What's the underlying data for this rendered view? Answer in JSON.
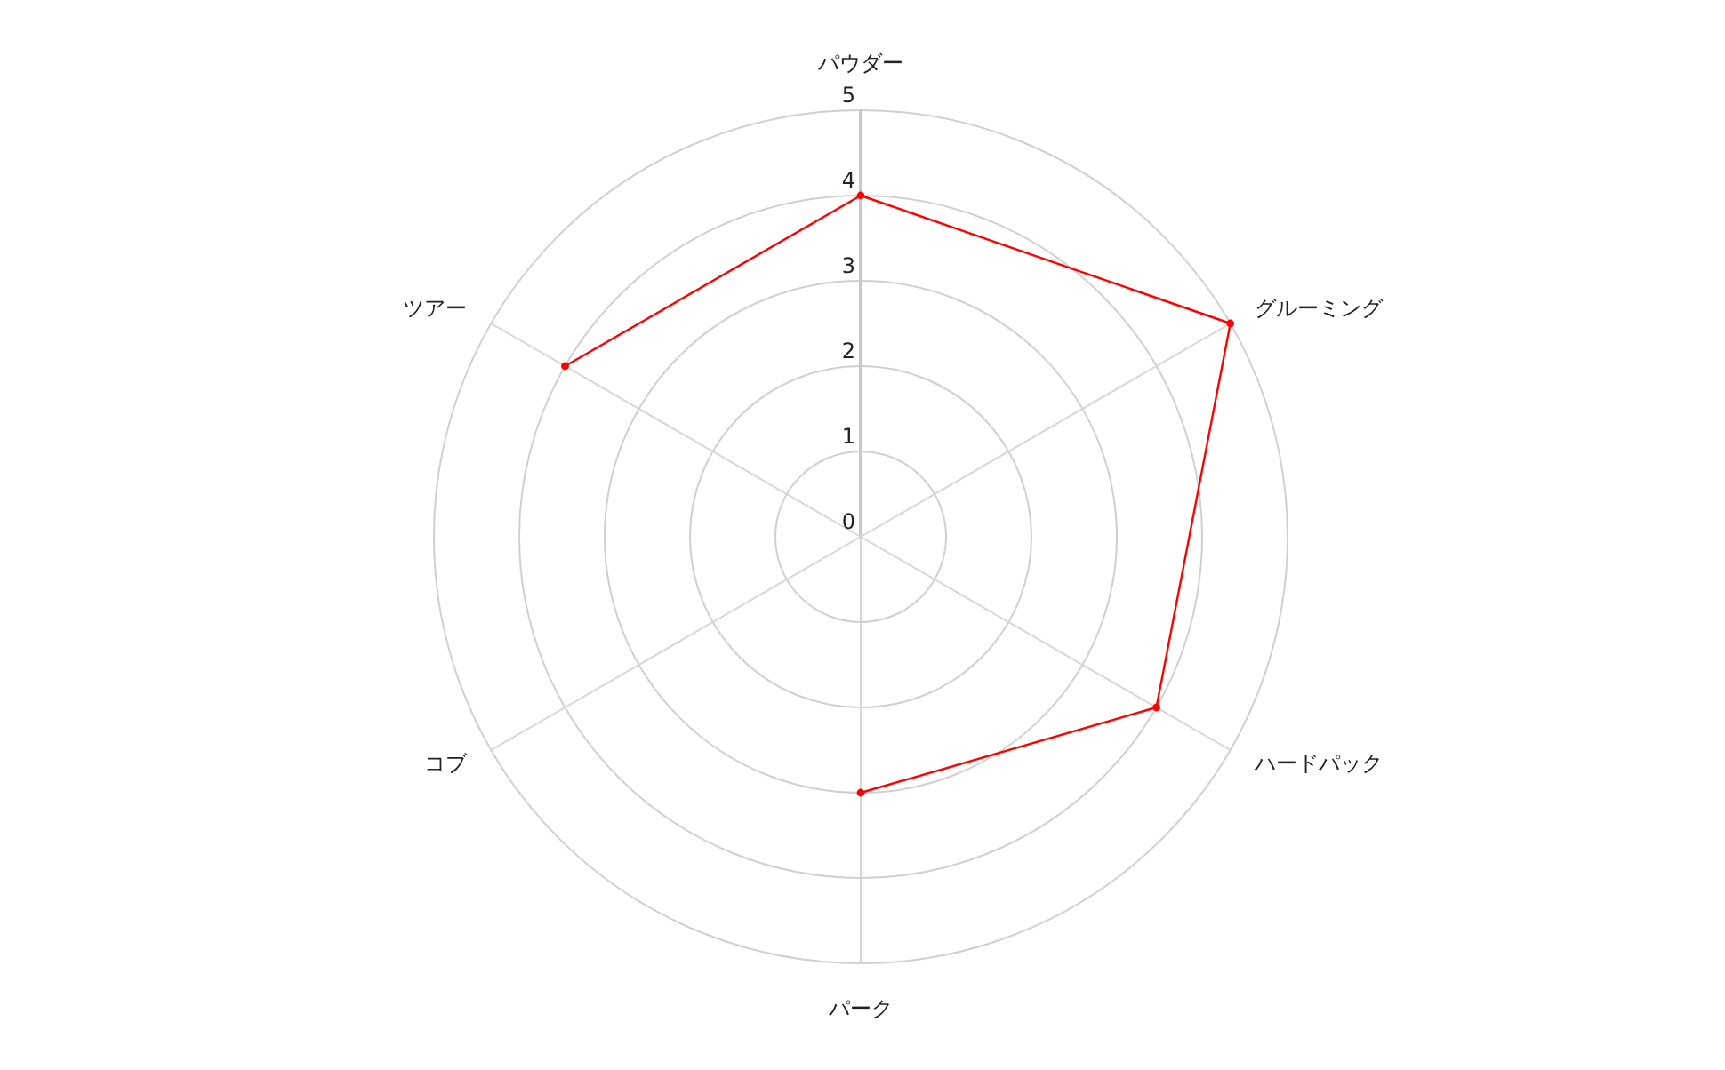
{
  "chart_data": {
    "type": "radar",
    "categories": [
      "パウダー",
      "グルーミング",
      "ハードパック",
      "パーク",
      "コブ",
      "ツアー"
    ],
    "series": [
      {
        "color": "#ff0000",
        "values": [
          4,
          5,
          4,
          3,
          null,
          4
        ]
      }
    ],
    "ylim": [
      0,
      5
    ],
    "yticks": [
      0,
      1,
      2,
      3,
      4,
      5
    ],
    "grid": true,
    "marker": "circle"
  }
}
